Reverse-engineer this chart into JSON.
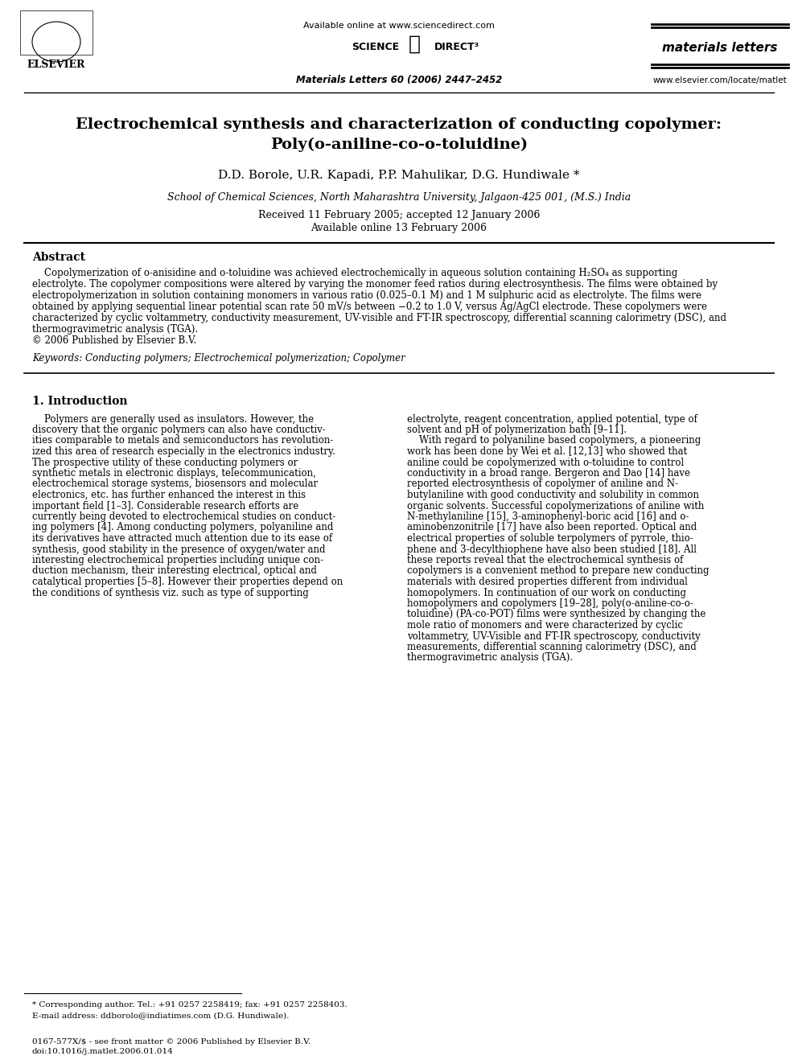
{
  "bg_color": "#ffffff",
  "header": {
    "available_online": "Available online at www.sciencedirect.com",
    "journal_name": "materials letters",
    "citation": "Materials Letters 60 (2006) 2447–2452",
    "website": "www.elsevier.com/locate/matlet"
  },
  "title_line1": "Electrochemical synthesis and characterization of conducting copolymer:",
  "title_line2": "Poly(o-aniline-co-o-toluidine)",
  "authors": "D.D. Borole, U.R. Kapadi, P.P. Mahulikar, D.G. Hundiwale *",
  "affiliation": "School of Chemical Sciences, North Maharashtra University, Jalgaon-425 001, (M.S.) India",
  "received": "Received 11 February 2005; accepted 12 January 2006",
  "available": "Available online 13 February 2006",
  "abstract_title": "Abstract",
  "abstract_text": "    Copolymerization of o-anisidine and o-toluidine was achieved electrochemically in aqueous solution containing H₂SO₄ as supporting electrolyte. The copolymer compositions were altered by varying the monomer feed ratios during electrosynthesis. The films were obtained by electropolymerization in solution containing monomers in various ratio (0.025–0.1 M) and 1 M sulphuric acid as electrolyte. The films were obtained by applying sequential linear potential scan rate 50 mV/s between −0.2 to 1.0 V, versus Ag/AgCl electrode. These copolymers were characterized by cyclic voltammetry, conductivity measurement, UV-visible and FT-IR spectroscopy, differential scanning calorimetry (DSC), and thermogravimetric analysis (TGA).\n© 2006 Published by Elsevier B.V.",
  "keywords": "Keywords: Conducting polymers; Electrochemical polymerization; Copolymer",
  "section1_title": "1. Introduction",
  "col1_text": "    Polymers are generally used as insulators. However, the discovery that the organic polymers can also have conductivities comparable to metals and semiconductors has revolutionized this area of research especially in the electronics industry. The prospective utility of these conducting polymers or synthetic metals in electronic displays, telecommunication, electrochemical storage systems, biosensors and molecular electronics, etc. has further enhanced the interest in this important field [1–3]. Considerable research efforts are currently being devoted to electrochemical studies on conducting polymers [4]. Among conducting polymers, polyaniline and its derivatives have attracted much attention due to its ease of synthesis, good stability in the presence of oxygen/water and interesting electrochemical properties including unique conduction mechanism, their interesting electrical, optical and catalytical properties [5–8]. However their properties depend on the conditions of synthesis viz. such as type of supporting",
  "col2_text_intro": "electrolyte, reagent concentration, applied potential, type of solvent and pH of polymerization bath [9–11].\n    With regard to polyaniline based copolymers, a pioneering work has been done by Wei et al. [12,13] who showed that aniline could be copolymerized with o-toluidine to control conductivity in a broad range. Bergeron and Dao [14] have reported electrosynthesis of copolymer of aniline and N-butylaniline with good conductivity and solubility in common organic solvents. Successful copolymerizations of aniline with N-methylaniline [15], 3-aminophenyl-boric acid [16] and o-aminobenzonitrile [17] have also been reported. Optical and electrical properties of soluble terpolymers of pyrrole, thiophene and 3-decylthiophene have also been studied [18]. All these reports reveal that the electrochemical synthesis of copolymers is a convenient method to prepare new conducting materials with desired properties different from individual homopolymers. In continuation of our work on conducting homopolymers and copolymers [19–28], poly(o-aniline-co-o-toluidine) (PA-co-POT) films were synthesized by changing the mole ratio of monomers and were characterized by cyclic voltammetry, UV-Visible and FT-IR spectroscopy, conductivity measurements, differential scanning calorimetry (DSC), and thermogravimetric analysis (TGA).",
  "footnote_star": "* Corresponding author. Tel.: +91 0257 2258419; fax: +91 0257 2258403.",
  "footnote_email": "E-mail address: ddborolo@indiatimes.com (D.G. Hundiwale).",
  "footer_issn": "0167-577X/$ - see front matter © 2006 Published by Elsevier B.V.",
  "footer_doi": "doi:10.1016/j.matlet.2006.01.014"
}
